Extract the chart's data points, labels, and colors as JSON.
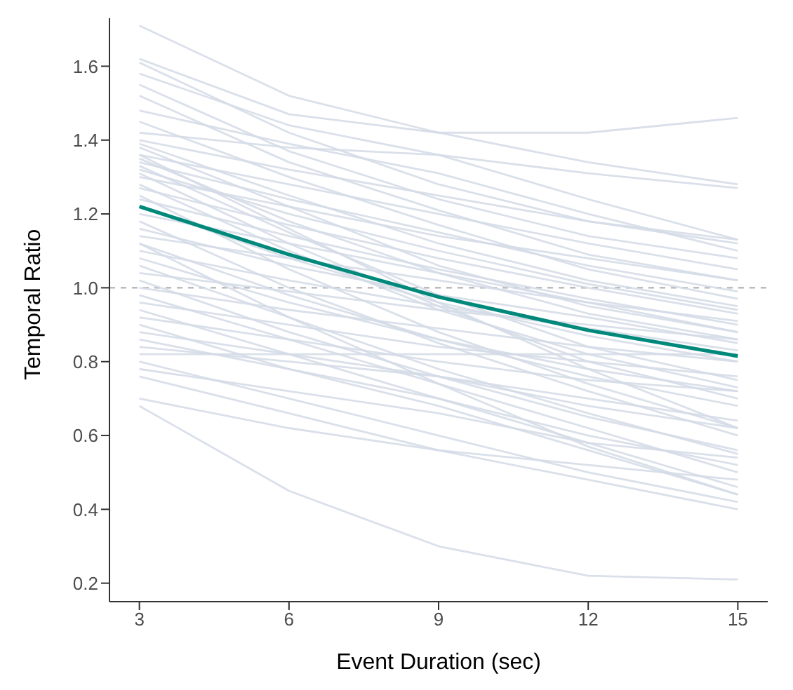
{
  "chart_data": {
    "type": "line",
    "xlabel": "Event Duration (sec)",
    "ylabel": "Temporal Ratio",
    "x": [
      3,
      6,
      9,
      12,
      15
    ],
    "xlim": [
      2.4,
      15.6
    ],
    "xticks": [
      3,
      6,
      9,
      12,
      15
    ],
    "ylim": [
      0.15,
      1.73
    ],
    "yticks": [
      0.2,
      0.4,
      0.6,
      0.8,
      {
        "value": 1,
        "label": "1.0"
      },
      1.2,
      1.4,
      1.6
    ],
    "marker": "none",
    "line_style": "solid",
    "ref_lines": [
      {
        "axis": "y",
        "value": 1.0,
        "color": "#b3b3b3",
        "line_style": "dashed"
      }
    ],
    "series": [
      {
        "color": "#d3dbe6",
        "values": [
          1.71,
          1.52,
          1.42,
          1.34,
          1.28
        ]
      },
      {
        "color": "#d3dbe6",
        "values": [
          1.62,
          1.47,
          1.42,
          1.42,
          1.46
        ]
      },
      {
        "color": "#d3dbe6",
        "values": [
          1.61,
          1.42,
          1.28,
          1.18,
          1.12
        ]
      },
      {
        "color": "#d3dbe6",
        "values": [
          1.58,
          1.44,
          1.36,
          1.24,
          1.13
        ]
      },
      {
        "color": "#d3dbe6",
        "values": [
          1.55,
          1.37,
          1.24,
          1.14,
          1.08
        ]
      },
      {
        "color": "#d3dbe6",
        "values": [
          1.52,
          1.34,
          1.21,
          1.09,
          1.02
        ]
      },
      {
        "color": "#d3dbe6",
        "values": [
          1.48,
          1.39,
          1.31,
          1.2,
          1.1
        ]
      },
      {
        "color": "#d3dbe6",
        "values": [
          1.45,
          1.3,
          1.17,
          1.05,
          0.97
        ]
      },
      {
        "color": "#d3dbe6",
        "values": [
          1.42,
          1.38,
          1.36,
          1.31,
          1.27
        ]
      },
      {
        "color": "#d3dbe6",
        "values": [
          1.4,
          1.32,
          1.25,
          1.18,
          1.13
        ]
      },
      {
        "color": "#d3dbe6",
        "values": [
          1.39,
          1.25,
          1.12,
          1.02,
          0.95
        ]
      },
      {
        "color": "#d3dbe6",
        "values": [
          1.38,
          1.22,
          1.06,
          0.95,
          0.88
        ]
      },
      {
        "color": "#d3dbe6",
        "values": [
          1.36,
          1.28,
          1.2,
          1.12,
          1.05
        ]
      },
      {
        "color": "#d3dbe6",
        "values": [
          1.35,
          1.18,
          1.04,
          0.93,
          0.86
        ]
      },
      {
        "color": "#d3dbe6",
        "values": [
          1.34,
          1.24,
          1.15,
          1.06,
          0.99
        ]
      },
      {
        "color": "#d3dbe6",
        "values": [
          1.33,
          1.15,
          0.98,
          0.84,
          0.75
        ]
      },
      {
        "color": "#d3dbe6",
        "values": [
          1.32,
          1.2,
          1.1,
          1.01,
          0.94
        ]
      },
      {
        "color": "#d3dbe6",
        "values": [
          1.31,
          1.12,
          0.95,
          0.8,
          0.7
        ]
      },
      {
        "color": "#d3dbe6",
        "values": [
          1.3,
          1.22,
          1.14,
          1.08,
          1.02
        ]
      },
      {
        "color": "#d3dbe6",
        "values": [
          1.28,
          1.1,
          0.94,
          0.82,
          0.73
        ]
      },
      {
        "color": "#d3dbe6",
        "values": [
          1.27,
          1.17,
          1.08,
          1.0,
          0.93
        ]
      },
      {
        "color": "#d3dbe6",
        "values": [
          1.25,
          1.05,
          0.88,
          0.74,
          0.62
        ]
      },
      {
        "color": "#d3dbe6",
        "values": [
          1.24,
          1.14,
          1.05,
          0.97,
          0.9
        ]
      },
      {
        "color": "#d3dbe6",
        "values": [
          1.22,
          1.08,
          0.96,
          0.87,
          0.8
        ]
      },
      {
        "color": "#d3dbe6",
        "values": [
          1.2,
          1.12,
          1.04,
          0.96,
          0.88
        ]
      },
      {
        "color": "#d3dbe6",
        "values": [
          1.18,
          1.0,
          0.85,
          0.72,
          0.6
        ]
      },
      {
        "color": "#d3dbe6",
        "values": [
          1.16,
          1.06,
          0.98,
          0.92,
          0.85
        ]
      },
      {
        "color": "#d3dbe6",
        "values": [
          1.14,
          1.08,
          1.02,
          0.96,
          0.91
        ]
      },
      {
        "color": "#d3dbe6",
        "values": [
          1.12,
          0.98,
          0.86,
          0.76,
          0.68
        ]
      },
      {
        "color": "#d3dbe6",
        "values": [
          1.1,
          1.02,
          0.95,
          0.89,
          0.83
        ]
      },
      {
        "color": "#d3dbe6",
        "values": [
          1.08,
          0.96,
          0.86,
          0.78,
          0.72
        ]
      },
      {
        "color": "#d3dbe6",
        "values": [
          1.06,
          0.92,
          0.78,
          0.66,
          0.55
        ]
      },
      {
        "color": "#d3dbe6",
        "values": [
          1.04,
          0.99,
          0.94,
          0.9,
          0.86
        ]
      },
      {
        "color": "#d3dbe6",
        "values": [
          1.02,
          0.88,
          0.76,
          0.65,
          0.56
        ]
      },
      {
        "color": "#d3dbe6",
        "values": [
          1.0,
          0.94,
          0.89,
          0.84,
          0.8
        ]
      },
      {
        "color": "#d3dbe6",
        "values": [
          0.98,
          0.86,
          0.74,
          0.62,
          0.5
        ]
      },
      {
        "color": "#d3dbe6",
        "values": [
          0.96,
          0.9,
          0.84,
          0.8,
          0.76
        ]
      },
      {
        "color": "#d3dbe6",
        "values": [
          0.94,
          0.82,
          0.7,
          0.58,
          0.46
        ]
      },
      {
        "color": "#d3dbe6",
        "values": [
          0.92,
          0.86,
          0.8,
          0.75,
          0.72
        ]
      },
      {
        "color": "#d3dbe6",
        "values": [
          0.9,
          0.78,
          0.68,
          0.56,
          0.44
        ]
      },
      {
        "color": "#d3dbe6",
        "values": [
          0.88,
          0.82,
          0.76,
          0.68,
          0.62
        ]
      },
      {
        "color": "#d3dbe6",
        "values": [
          0.86,
          0.78,
          0.7,
          0.6,
          0.52
        ]
      },
      {
        "color": "#d3dbe6",
        "values": [
          0.84,
          0.8,
          0.76,
          0.7,
          0.64
        ]
      },
      {
        "color": "#d3dbe6",
        "values": [
          0.82,
          0.82,
          0.82,
          0.82,
          0.82
        ]
      },
      {
        "color": "#d3dbe6",
        "values": [
          0.8,
          0.7,
          0.6,
          0.5,
          0.42
        ]
      },
      {
        "color": "#d3dbe6",
        "values": [
          0.78,
          0.72,
          0.66,
          0.58,
          0.54
        ]
      },
      {
        "color": "#d3dbe6",
        "values": [
          0.76,
          0.66,
          0.56,
          0.48,
          0.4
        ]
      },
      {
        "color": "#d3dbe6",
        "values": [
          0.7,
          0.62,
          0.56,
          0.52,
          0.48
        ]
      },
      {
        "color": "#d3dbe6",
        "values": [
          0.68,
          0.45,
          0.3,
          0.22,
          0.21
        ]
      },
      {
        "color": "#d3dbe6",
        "values": [
          1.12,
          0.92,
          0.74,
          0.57,
          0.44
        ]
      },
      {
        "color": "#d3dbe6",
        "values": [
          1.36,
          1.16,
          0.96,
          0.78,
          0.62
        ]
      },
      {
        "color": "#00897b",
        "values": [
          1.22,
          1.09,
          0.975,
          0.885,
          0.815
        ]
      }
    ]
  }
}
